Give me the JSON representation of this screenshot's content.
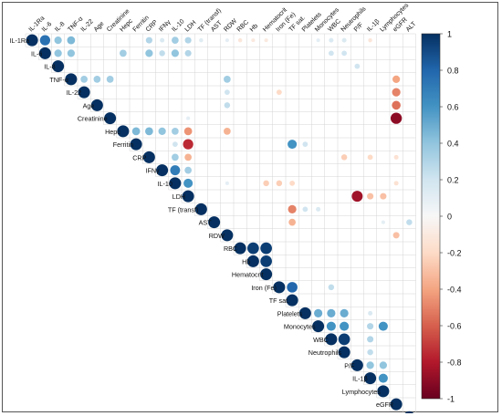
{
  "chart_data": {
    "type": "heatmap",
    "subtype": "correlation-matrix-upper-triangle-circles",
    "title": "",
    "variables": [
      "IL-1Ra",
      "IL-6",
      "IL-8",
      "TNF-α",
      "IL-22",
      "Age",
      "Creatinine",
      "Hepc",
      "Ferritin",
      "CRP",
      "IFNγ",
      "IL-10",
      "LDH",
      "TF (transf)",
      "AST",
      "RDW",
      "RBC",
      "Hb",
      "Hematocrit",
      "Iron (Fe)",
      "TF sat.",
      "Platelets",
      "Monocytes",
      "WBC",
      "Neutrophils",
      "P/F",
      "IL-1β",
      "Lymphocytes",
      "eGFR",
      "ALT"
    ],
    "top_labels": [
      "IL-1Ra",
      "IL-6",
      "IL-8",
      "TNF-α",
      "IL-22",
      "Age",
      "Creatinine",
      "Hepc",
      "Ferritin",
      "CRP",
      "IFNγ",
      "IL-10",
      "LDH",
      "TF (transf)",
      "AST",
      "RDW",
      "RBC",
      "Hb",
      "Hematocrit",
      "Iron (Fe)",
      "TF sat.",
      "Platelets",
      "Monocytes",
      "WBC",
      "Neutrophils",
      "P/F",
      "IL-1β",
      "Lymphocytes",
      "eGFR",
      "ALT"
    ],
    "diagonal_value": 1,
    "correlations": [
      {
        "row": "IL-1Ra",
        "col": "IL-6",
        "r": 0.75
      },
      {
        "row": "IL-1Ra",
        "col": "IL-8",
        "r": 0.4
      },
      {
        "row": "IL-1Ra",
        "col": "TNF-α",
        "r": 0.45
      },
      {
        "row": "IL-1Ra",
        "col": "CRP",
        "r": 0.3
      },
      {
        "row": "IL-1Ra",
        "col": "IFNγ",
        "r": 0.15
      },
      {
        "row": "IL-1Ra",
        "col": "IL-10",
        "r": 0.35
      },
      {
        "row": "IL-1Ra",
        "col": "LDH",
        "r": 0.3
      },
      {
        "row": "IL-1Ra",
        "col": "TF (transf)",
        "r": 0.12
      },
      {
        "row": "IL-1Ra",
        "col": "RDW",
        "r": 0.1
      },
      {
        "row": "IL-1Ra",
        "col": "RBC",
        "r": -0.12
      },
      {
        "row": "IL-1Ra",
        "col": "Hb",
        "r": -0.1
      },
      {
        "row": "IL-1Ra",
        "col": "Hematocrit",
        "r": -0.1
      },
      {
        "row": "IL-1Ra",
        "col": "Monocytes",
        "r": 0.1
      },
      {
        "row": "IL-1Ra",
        "col": "WBC",
        "r": 0.15
      },
      {
        "row": "IL-1Ra",
        "col": "Neutrophils",
        "r": 0.15
      },
      {
        "row": "IL-1Ra",
        "col": "IL-1β",
        "r": -0.12
      },
      {
        "row": "IL-6",
        "col": "IL-8",
        "r": 0.4
      },
      {
        "row": "IL-6",
        "col": "TNF-α",
        "r": 0.4
      },
      {
        "row": "IL-6",
        "col": "Hepc",
        "r": 0.35
      },
      {
        "row": "IL-6",
        "col": "CRP",
        "r": 0.4
      },
      {
        "row": "IL-6",
        "col": "IFNγ",
        "r": 0.25
      },
      {
        "row": "IL-6",
        "col": "IL-10",
        "r": 0.4
      },
      {
        "row": "IL-6",
        "col": "LDH",
        "r": 0.3
      },
      {
        "row": "IL-6",
        "col": "WBC",
        "r": 0.2
      },
      {
        "row": "IL-6",
        "col": "Neutrophils",
        "r": 0.2
      },
      {
        "row": "IL-8",
        "col": "P/F",
        "r": 0.2
      },
      {
        "row": "TNF-α",
        "col": "IL-22",
        "r": 0.35
      },
      {
        "row": "TNF-α",
        "col": "Age",
        "r": 0.35
      },
      {
        "row": "TNF-α",
        "col": "Creatinine",
        "r": 0.35
      },
      {
        "row": "TNF-α",
        "col": "RDW",
        "r": 0.35
      },
      {
        "row": "TNF-α",
        "col": "eGFR",
        "r": -0.4
      },
      {
        "row": "IL-22",
        "col": "RDW",
        "r": 0.2
      },
      {
        "row": "IL-22",
        "col": "Iron (Fe)",
        "r": -0.2
      },
      {
        "row": "IL-22",
        "col": "eGFR",
        "r": -0.5
      },
      {
        "row": "Age",
        "col": "RDW",
        "r": 0.25
      },
      {
        "row": "Age",
        "col": "eGFR",
        "r": -0.55
      },
      {
        "row": "Creatinine",
        "col": "LDH",
        "r": 0.1
      },
      {
        "row": "Creatinine",
        "col": "eGFR",
        "r": -0.9
      },
      {
        "row": "Hepc",
        "col": "Ferritin",
        "r": 0.45
      },
      {
        "row": "Hepc",
        "col": "CRP",
        "r": 0.45
      },
      {
        "row": "Hepc",
        "col": "IFNγ",
        "r": 0.4
      },
      {
        "row": "Hepc",
        "col": "IL-10",
        "r": 0.35
      },
      {
        "row": "Hepc",
        "col": "LDH",
        "r": -0.45
      },
      {
        "row": "Hepc",
        "col": "RDW",
        "r": -0.35
      },
      {
        "row": "Ferritin",
        "col": "IL-10",
        "r": 0.2
      },
      {
        "row": "Ferritin",
        "col": "LDH",
        "r": -0.75
      },
      {
        "row": "Ferritin",
        "col": "TF sat.",
        "r": 0.6
      },
      {
        "row": "Ferritin",
        "col": "Platelets",
        "r": 0.2
      },
      {
        "row": "CRP",
        "col": "IL-10",
        "r": 0.35
      },
      {
        "row": "CRP",
        "col": "LDH",
        "r": -0.35
      },
      {
        "row": "CRP",
        "col": "Neutrophils",
        "r": -0.25
      },
      {
        "row": "CRP",
        "col": "IL-1β",
        "r": -0.2
      },
      {
        "row": "CRP",
        "col": "eGFR",
        "r": -0.15
      },
      {
        "row": "IFNγ",
        "col": "IL-10",
        "r": 0.7
      },
      {
        "row": "IFNγ",
        "col": "LDH",
        "r": 0.35
      },
      {
        "row": "IL-10",
        "col": "LDH",
        "r": 0.6
      },
      {
        "row": "IL-10",
        "col": "RDW",
        "r": 0.1
      },
      {
        "row": "IL-10",
        "col": "Hematocrit",
        "r": -0.25
      },
      {
        "row": "IL-10",
        "col": "Iron (Fe)",
        "r": -0.25
      },
      {
        "row": "IL-10",
        "col": "TF sat.",
        "r": -0.2
      },
      {
        "row": "IL-10",
        "col": "eGFR",
        "r": -0.15
      },
      {
        "row": "LDH",
        "col": "P/F",
        "r": -0.85
      },
      {
        "row": "LDH",
        "col": "IL-1β",
        "r": -0.3
      },
      {
        "row": "LDH",
        "col": "Lymphocytes",
        "r": -0.3
      },
      {
        "row": "TF (transf)",
        "col": "TF sat.",
        "r": -0.5
      },
      {
        "row": "TF (transf)",
        "col": "Platelets",
        "r": 0.2
      },
      {
        "row": "TF (transf)",
        "col": "Monocytes",
        "r": 0.15
      },
      {
        "row": "AST",
        "col": "TF sat.",
        "r": -0.35
      },
      {
        "row": "AST",
        "col": "Lymphocytes",
        "r": 0.1
      },
      {
        "row": "AST",
        "col": "ALT",
        "r": 0.25
      },
      {
        "row": "RDW",
        "col": "eGFR",
        "r": -0.3
      },
      {
        "row": "RBC",
        "col": "Hb",
        "r": 0.95
      },
      {
        "row": "RBC",
        "col": "Hematocrit",
        "r": 0.95
      },
      {
        "row": "Hb",
        "col": "Hematocrit",
        "r": 0.95
      },
      {
        "row": "Iron (Fe)",
        "col": "TF sat.",
        "r": 0.8
      },
      {
        "row": "Iron (Fe)",
        "col": "WBC",
        "r": 0.25
      },
      {
        "row": "Platelets",
        "col": "Monocytes",
        "r": 0.5
      },
      {
        "row": "Platelets",
        "col": "WBC",
        "r": 0.5
      },
      {
        "row": "Platelets",
        "col": "Neutrophils",
        "r": 0.5
      },
      {
        "row": "Platelets",
        "col": "IL-1β",
        "r": 0.15
      },
      {
        "row": "Monocytes",
        "col": "WBC",
        "r": 0.6
      },
      {
        "row": "Monocytes",
        "col": "Neutrophils",
        "r": 0.6
      },
      {
        "row": "Monocytes",
        "col": "IL-1β",
        "r": 0.3
      },
      {
        "row": "Monocytes",
        "col": "Lymphocytes",
        "r": 0.6
      },
      {
        "row": "WBC",
        "col": "Neutrophils",
        "r": 0.95
      },
      {
        "row": "WBC",
        "col": "IL-1β",
        "r": 0.3
      },
      {
        "row": "Neutrophils",
        "col": "IL-1β",
        "r": 0.25
      },
      {
        "row": "P/F",
        "col": "IL-1β",
        "r": 0.4
      },
      {
        "row": "P/F",
        "col": "Lymphocytes",
        "r": 0.4
      },
      {
        "row": "IL-1β",
        "col": "Lymphocytes",
        "r": 0.6
      }
    ],
    "colorbar": {
      "min": -1,
      "max": 1,
      "ticks": [
        "1",
        "0.8",
        "0.6",
        "0.4",
        "0.2",
        "0",
        "-0.2",
        "-0.4",
        "-0.6",
        "-0.8",
        "-1"
      ]
    },
    "colors": {
      "negative_strong": "#67001f",
      "negative_mid": "#d6604d",
      "neutral": "#f7f7f7",
      "positive_mid": "#4393c3",
      "positive_strong": "#053061",
      "grid": "#d4d4d4"
    }
  }
}
